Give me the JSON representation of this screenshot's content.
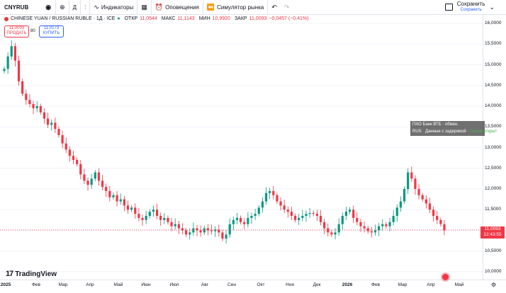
{
  "toolbar": {
    "symbol": "CNYRUB",
    "indicators_label": "Индикаторы",
    "alerts_label": "Оповещения",
    "simulator_label": "Симулятор рынка",
    "interval_label": "Д",
    "save_label": "Сохранить",
    "save_sub": "Сохранить"
  },
  "legend": {
    "title": "CHINESE YUAN / RUSSIAN RUBLE · 1Д · ICE",
    "open_key": "ОТКР",
    "open_val": "11,0544",
    "high_key": "МАКС",
    "high_val": "11,1143",
    "low_key": "МИН",
    "low_val": "10,9920",
    "close_key": "ЗАКР",
    "close_val": "11,0093",
    "change_val": "−0,0457 (−0,41%)"
  },
  "trade": {
    "sell_price": "11,0093",
    "sell_label": "ПРОДАТЬ",
    "spread": "80",
    "buy_price": "11,0173",
    "buy_label": "КУПИТЬ"
  },
  "tooltip": {
    "line1": "ПАО Банк ВТБ · обмен.",
    "line2_a": "RUS",
    "line2_b": "Данные с задержкой",
    "line2_c": "Рынок открыт"
  },
  "price_label": {
    "price": "11,0093",
    "countdown": "12:43:55"
  },
  "logo_text": "TradingView",
  "colors": {
    "up": "#089981",
    "down": "#f23645",
    "axis_text": "#131722",
    "grid": "#f0f3fa"
  },
  "chart_data": {
    "type": "candlestick",
    "title": "CHINESE YUAN / RUSSIAN RUBLE · 1Д · ICE",
    "ylim": [
      9.95,
      16.15
    ],
    "y_ticks": [
      "16,0000",
      "15,5000",
      "15,0000",
      "14,5000",
      "14,0000",
      "13,5000",
      "13,0000",
      "12,5000",
      "12,0000",
      "11,5000",
      "11,0000",
      "10,5000",
      "10,0000"
    ],
    "x_ticks": [
      "2025",
      "Фев",
      "Мар",
      "Апр",
      "Май",
      "Июн",
      "Июл",
      "Авг",
      "Сен",
      "Окт",
      "Ноя",
      "Дек",
      "2026",
      "Фев",
      "Мар",
      "Апр",
      "Май"
    ],
    "series": [
      {
        "values": [
          14.9,
          15.2,
          15.45,
          15.1,
          14.6,
          14.3,
          14.15,
          14.05,
          13.95,
          14.0,
          13.85,
          13.7,
          13.55,
          13.6,
          13.45,
          13.3,
          13.1,
          12.95,
          12.8,
          12.7,
          12.6,
          12.35,
          12.2,
          12.1,
          12.25,
          12.4,
          12.2,
          12.05,
          11.95,
          11.8,
          11.85,
          11.7,
          11.75,
          11.6,
          11.5,
          11.55,
          11.4,
          11.3,
          11.25,
          11.35,
          11.45,
          11.5,
          11.35,
          11.25,
          11.3,
          11.2,
          11.1,
          11.15,
          11.05,
          11.0,
          10.9,
          10.95,
          11.05,
          11.0,
          10.95,
          11.05,
          11.0,
          10.98,
          11.02,
          10.95,
          10.8,
          10.9,
          11.15,
          11.25,
          11.3,
          11.2,
          11.15,
          11.3,
          11.35,
          11.4,
          11.55,
          11.7,
          11.9,
          11.95,
          11.85,
          11.7,
          11.6,
          11.5,
          11.45,
          11.35,
          11.25,
          11.3,
          11.35,
          11.4,
          11.42,
          11.4,
          11.35,
          11.2,
          11.05,
          10.95,
          10.9,
          10.95,
          11.15,
          11.35,
          11.45,
          11.5,
          11.3,
          11.2,
          11.1,
          11.05,
          10.98,
          10.95,
          11.0,
          11.1,
          11.15,
          11.1,
          11.2,
          11.35,
          11.55,
          11.7,
          12.0,
          12.4,
          12.25,
          12.0,
          11.85,
          11.75,
          11.65,
          11.5,
          11.35,
          11.25,
          11.15,
          11.0
        ]
      }
    ]
  }
}
